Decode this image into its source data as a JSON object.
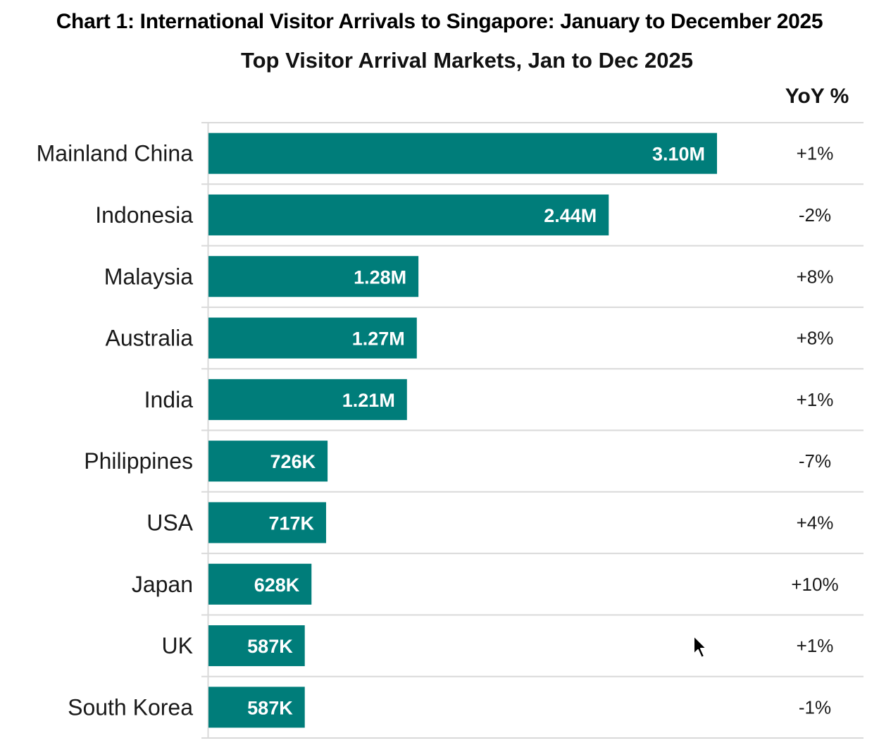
{
  "heading": "Chart 1: International Visitor Arrivals to Singapore: January to December 2025",
  "chart_data": {
    "type": "bar",
    "orientation": "horizontal",
    "title": "Top Visitor Arrival Markets, Jan to Dec 2025",
    "categories": [
      "Mainland China",
      "Indonesia",
      "Malaysia",
      "Australia",
      "India",
      "Philippines",
      "USA",
      "Japan",
      "UK",
      "South Korea"
    ],
    "values": [
      3100000,
      2440000,
      1280000,
      1270000,
      1210000,
      726000,
      717000,
      628000,
      587000,
      587000
    ],
    "data_labels": [
      "3.10M",
      "2.44M",
      "1.28M",
      "1.27M",
      "1.21M",
      "726K",
      "717K",
      "628K",
      "587K",
      "587K"
    ],
    "yoy_header": "YoY %",
    "yoy": [
      "+1%",
      "-2%",
      "+8%",
      "+8%",
      "+1%",
      "-7%",
      "+4%",
      "+10%",
      "+1%",
      "-1%"
    ],
    "xlim": [
      0,
      3100000
    ],
    "grid": true,
    "bar_color": "#007D7A",
    "label_color": "#FFFFFF",
    "grid_color": "#D9D9D9"
  }
}
